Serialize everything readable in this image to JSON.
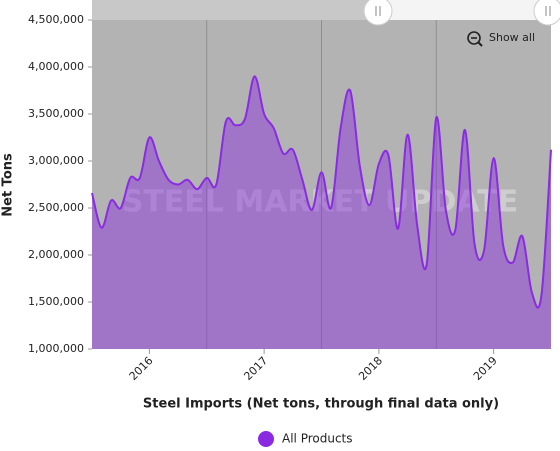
{
  "chart_data": {
    "type": "area",
    "x_label": "Steel Imports (Net tons, through final data only)",
    "y_label": "Net Tons",
    "watermark": "STEEL MARKET UPDATE",
    "button": "Show all",
    "categories": [
      null,
      null,
      null,
      null,
      null,
      null,
      "2016",
      null,
      null,
      null,
      null,
      null,
      null,
      null,
      null,
      null,
      null,
      null,
      "2017",
      null,
      null,
      null,
      null,
      null,
      null,
      null,
      null,
      null,
      null,
      null,
      "2018",
      null,
      null,
      null,
      null,
      null,
      null,
      null,
      null,
      null,
      null,
      null,
      "2019",
      null,
      null,
      null,
      null,
      null,
      null
    ],
    "series": [
      {
        "name": "All Products",
        "color": "#8a2be2",
        "values": [
          2660000,
          2290000,
          2580000,
          2500000,
          2820000,
          2820000,
          3250000,
          3000000,
          2800000,
          2750000,
          2800000,
          2700000,
          2820000,
          2750000,
          3420000,
          3380000,
          3450000,
          3900000,
          3500000,
          3350000,
          3080000,
          3120000,
          2800000,
          2480000,
          2880000,
          2500000,
          3350000,
          3750000,
          2950000,
          2530000,
          2970000,
          3060000,
          2280000,
          3280000,
          2320000,
          1900000,
          3460000,
          2480000,
          2270000,
          3330000,
          2120000,
          2050000,
          3030000,
          2100000,
          1920000,
          2200000,
          1600000,
          1570000,
          3120000
        ]
      }
    ],
    "ylim": [
      1000000,
      4500000
    ],
    "yticks": [
      {
        "value": 1000000,
        "label": "1,000,000"
      },
      {
        "value": 1500000,
        "label": "1,500,000"
      },
      {
        "value": 2000000,
        "label": "2,000,000"
      },
      {
        "value": 2500000,
        "label": "2,500,000"
      },
      {
        "value": 3000000,
        "label": "3,000,000"
      },
      {
        "value": 3500000,
        "label": "3,500,000"
      },
      {
        "value": 4000000,
        "label": "4,000,000"
      },
      {
        "value": 4500000,
        "label": "4,500,000"
      }
    ],
    "legend": "bottom"
  }
}
